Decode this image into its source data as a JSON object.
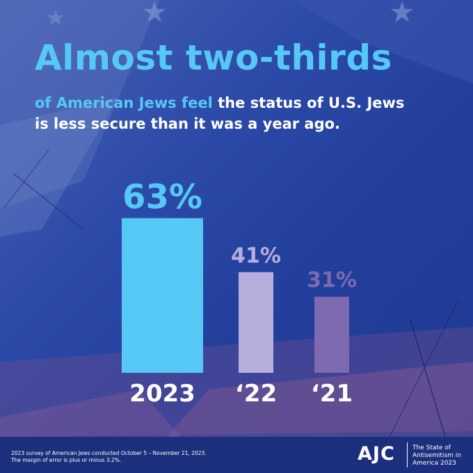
{
  "headline": "Almost two-thirds",
  "subhead": {
    "highlight": "of American Jews feel",
    "line1_rest": " the status of U.S. Jews",
    "line2": "is less secure than it was a year ago."
  },
  "colors": {
    "background": "#233f9c",
    "accent": "#56c8f5",
    "bar_2023": "#56c8f5",
    "bar_2022": "#b7aedd",
    "bar_2021": "#7d6aaf"
  },
  "chart_data": {
    "type": "bar",
    "categories": [
      "2023",
      "‘22",
      "‘21"
    ],
    "values": [
      63,
      41,
      31
    ],
    "data_labels": [
      "63%",
      "41%",
      "31%"
    ],
    "title": "",
    "xlabel": "",
    "ylabel": "",
    "ylim": [
      0,
      100
    ],
    "grid": false
  },
  "footer": {
    "note_line1": "2023 survey of American Jews conducted October 5 – November 21, 2023.",
    "note_line2": "The margin of error is plus or minus 3.2%.",
    "logo": "AJC",
    "caption_line1": "The State of",
    "caption_line2": "Antisemitism in",
    "caption_line3": "America 2023"
  }
}
